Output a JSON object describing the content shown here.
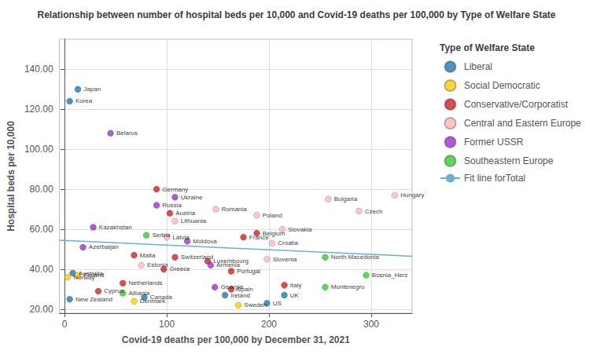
{
  "chart_data": {
    "type": "scatter",
    "title": "Relationship between number of hospital beds per 10,000 and Covid-19 deaths per 100,000 by Type of Welfare State",
    "xlabel": "Covid-19 deaths per 100,000 by December 31, 2021",
    "ylabel": "Hospital beds per 10,000",
    "legend_title": "Type of Welfare State",
    "xlim": [
      -5,
      340
    ],
    "ylim": [
      18,
      155
    ],
    "xticks": [
      0,
      100,
      200,
      300
    ],
    "yticks": [
      {
        "value": 20,
        "label": "20.00"
      },
      {
        "value": 40,
        "label": "40.00"
      },
      {
        "value": 60,
        "label": "60.00"
      },
      {
        "value": 80,
        "label": "80.00"
      },
      {
        "value": 100,
        "label": "100.00"
      },
      {
        "value": 120,
        "label": "120.00"
      },
      {
        "value": 140,
        "label": "140.00"
      }
    ],
    "grid": true,
    "legend": "right",
    "series": [
      {
        "name": "Liberal",
        "type": "scatter",
        "color": "#1f78b4",
        "x": [
          13,
          5,
          8,
          157,
          215,
          198,
          78,
          5
        ],
        "values": [
          130,
          124,
          38,
          27,
          27,
          23,
          26,
          25
        ],
        "point_labels": [
          "Japan",
          "Korea",
          "Australia",
          "Ireland",
          "UK",
          "US",
          "Canada",
          "New Zealand"
        ]
      },
      {
        "name": "Social Democratic",
        "type": "scatter",
        "color": "#ffcc00",
        "x": [
          13,
          3,
          170,
          68
        ],
        "values": [
          37,
          36,
          22,
          24
        ],
        "point_labels": [
          "Finland",
          "Norway",
          "Sweden",
          "Denmark"
        ]
      },
      {
        "name": "Conservative/Corporatist",
        "type": "scatter",
        "color": "#cc2222",
        "x": [
          90,
          103,
          188,
          175,
          108,
          68,
          140,
          97,
          163,
          57,
          163,
          215,
          33
        ],
        "values": [
          80,
          68,
          58,
          56,
          46,
          47,
          44,
          40,
          39,
          33,
          30,
          32,
          29
        ],
        "point_labels": [
          "Germany",
          "Austria",
          "Belgium",
          "France",
          "Switzerland",
          "Malta",
          "Luxembourg",
          "Greece",
          "Portugal",
          "Netherlands",
          "Spain",
          "Italy",
          "Cyprus"
        ]
      },
      {
        "name": "Central and Eastern Europe",
        "type": "scatter",
        "color": "#ffb6c1",
        "x": [
          258,
          323,
          108,
          148,
          188,
          288,
          100,
          213,
          203,
          198,
          75
        ],
        "values": [
          75,
          77,
          64,
          70,
          67,
          69,
          56,
          60,
          53,
          45,
          42
        ],
        "point_labels": [
          "Bulgaria",
          "Hungary",
          "Lithuania",
          "Romania",
          "Poland",
          "Czech",
          "Latvia",
          "Slovakia",
          "Croatia",
          "Slovenia",
          "Estonia"
        ]
      },
      {
        "name": "Former USSR",
        "type": "scatter",
        "color": "#9932cc",
        "x": [
          45,
          108,
          90,
          28,
          120,
          18,
          143,
          147
        ],
        "values": [
          108,
          76,
          72,
          61,
          54,
          51,
          42,
          31
        ],
        "point_labels": [
          "Belarus",
          "Ukraine",
          "Russia",
          "Kazakhstan",
          "Moldova",
          "Azerbaijan",
          "Armenia",
          "Georgia"
        ]
      },
      {
        "name": "Southeastern Europe",
        "type": "scatter",
        "color": "#33cc33",
        "x": [
          80,
          255,
          255,
          295,
          57
        ],
        "values": [
          57,
          46,
          31,
          37,
          28
        ],
        "point_labels": [
          "Serbia",
          "North Macedonia",
          "Montenegro",
          "Bosnia_Herz",
          "Albania"
        ]
      },
      {
        "name": "Fit line forTotal",
        "type": "line",
        "color": "#6ab0d4",
        "x": [
          -5,
          340
        ],
        "values": [
          54.5,
          46.5
        ]
      }
    ]
  }
}
